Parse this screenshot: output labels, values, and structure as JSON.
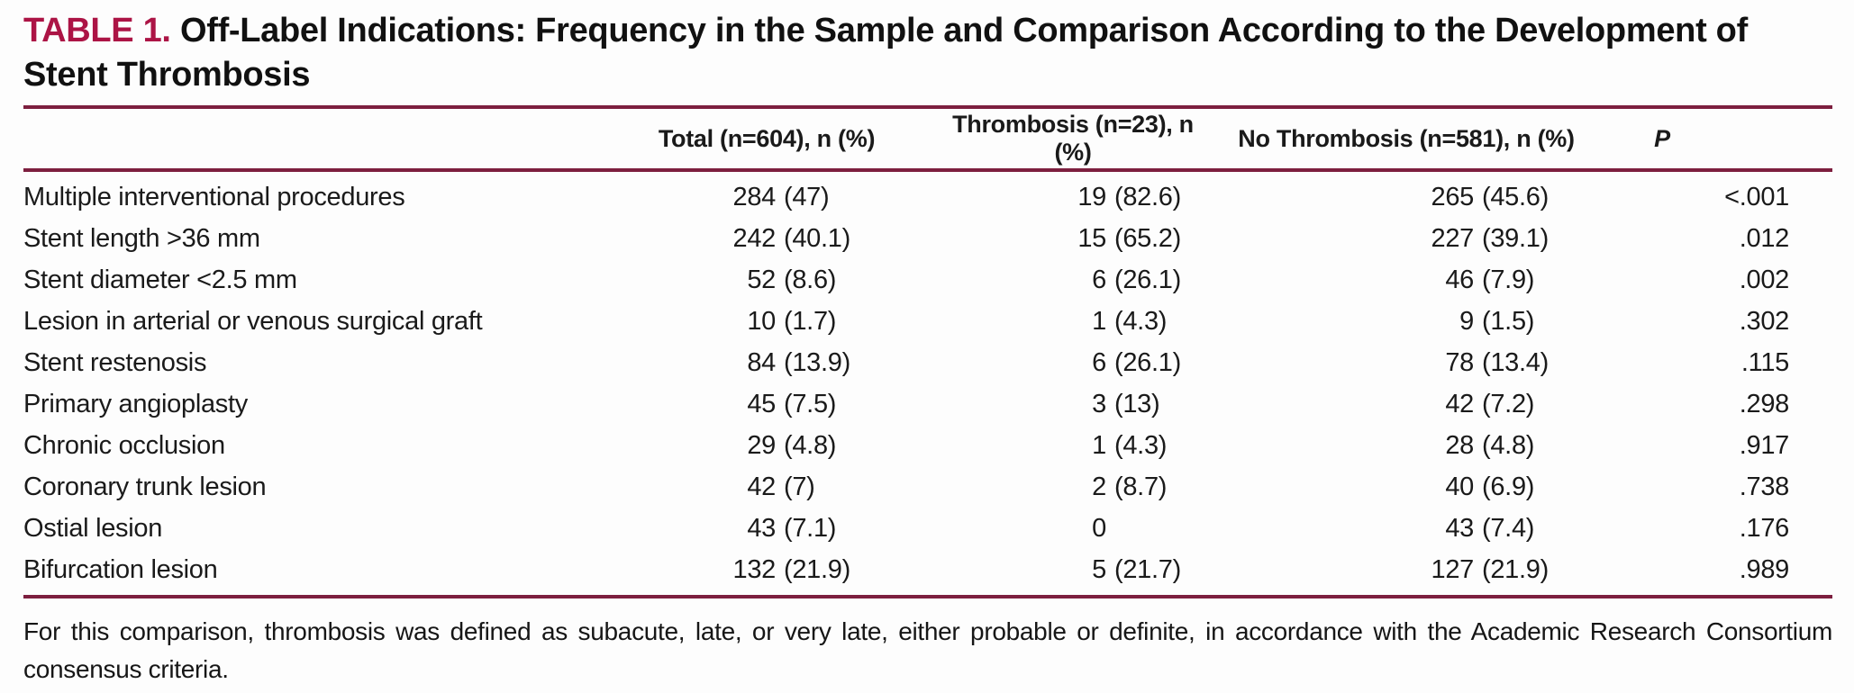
{
  "colors": {
    "accent": "#AC1445",
    "rule": "#7D1F3F",
    "text": "#1a1a1a"
  },
  "table": {
    "label": "TABLE 1.",
    "title": "Off-Label Indications: Frequency in the Sample and Comparison According to the Development of Stent Thrombosis",
    "header": {
      "total": "Total (n=604), n (%)",
      "thrombosis": "Thrombosis (n=23), n (%)",
      "no_thrombosis": "No Thrombosis (n=581), n (%)",
      "p": "P"
    },
    "rows": [
      {
        "label": "Multiple interventional procedures",
        "total": "284 (47)",
        "thrombosis": "19 (82.6)",
        "no_thrombosis": "265 (45.6)",
        "p": "<.001"
      },
      {
        "label": "Stent length >36 mm",
        "total": "242 (40.1)",
        "thrombosis": "15 (65.2)",
        "no_thrombosis": "227 (39.1)",
        "p": ".012"
      },
      {
        "label": "Stent diameter <2.5 mm",
        "total": "52 (8.6)",
        "thrombosis": "6 (26.1)",
        "no_thrombosis": "46 (7.9)",
        "p": ".002"
      },
      {
        "label": "Lesion in arterial or venous surgical graft",
        "total": "10 (1.7)",
        "thrombosis": "1 (4.3)",
        "no_thrombosis": "9 (1.5)",
        "p": ".302"
      },
      {
        "label": "Stent restenosis",
        "total": "84 (13.9)",
        "thrombosis": "6 (26.1)",
        "no_thrombosis": "78 (13.4)",
        "p": ".115"
      },
      {
        "label": "Primary angioplasty",
        "total": "45 (7.5)",
        "thrombosis": "3 (13)",
        "no_thrombosis": "42 (7.2)",
        "p": ".298"
      },
      {
        "label": "Chronic occlusion",
        "total": "29 (4.8)",
        "thrombosis": "1 (4.3)",
        "no_thrombosis": "28 (4.8)",
        "p": ".917"
      },
      {
        "label": "Coronary trunk lesion",
        "total": "42 (7)",
        "thrombosis": "2 (8.7)",
        "no_thrombosis": "40 (6.9)",
        "p": ".738"
      },
      {
        "label": "Ostial lesion",
        "total": "43 (7.1)",
        "thrombosis": "0",
        "no_thrombosis": "43 (7.4)",
        "p": ".176"
      },
      {
        "label": "Bifurcation lesion",
        "total": "132 (21.9)",
        "thrombosis": "5 (21.7)",
        "no_thrombosis": "127 (21.9)",
        "p": ".989"
      }
    ],
    "footnote": "For this comparison, thrombosis was defined as subacute, late, or very late, either probable or definite, in accordance with the Academic Research Consortium consensus criteria."
  }
}
